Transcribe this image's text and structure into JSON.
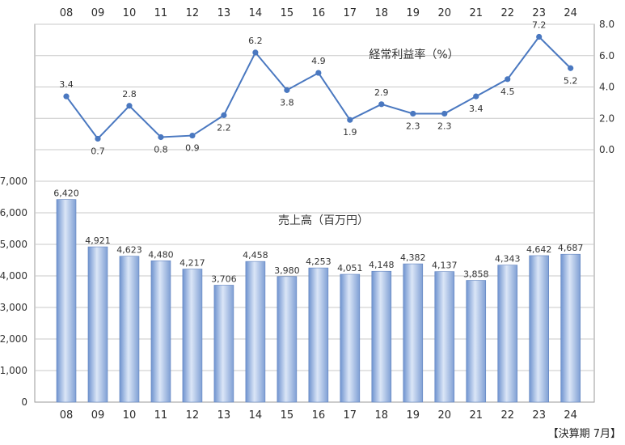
{
  "chart_data": [
    {
      "type": "line",
      "title": "経常利益率（%）",
      "categories": [
        "08",
        "09",
        "10",
        "11",
        "12",
        "13",
        "14",
        "15",
        "16",
        "17",
        "18",
        "19",
        "20",
        "21",
        "22",
        "23",
        "24"
      ],
      "values": [
        3.4,
        0.7,
        2.8,
        0.8,
        0.9,
        2.2,
        6.2,
        3.8,
        4.9,
        1.9,
        2.9,
        2.3,
        2.3,
        3.4,
        4.5,
        7.2,
        5.2
      ],
      "y_ticks": [
        "0.0",
        "2.0",
        "4.0",
        "6.0",
        "8.0"
      ],
      "ylim": [
        0,
        8
      ],
      "axis_side": "right",
      "color": "#4a78c0"
    },
    {
      "type": "bar",
      "title": "売上高（百万円）",
      "categories": [
        "08",
        "09",
        "10",
        "11",
        "12",
        "13",
        "14",
        "15",
        "16",
        "17",
        "18",
        "19",
        "20",
        "21",
        "22",
        "23",
        "24"
      ],
      "values": [
        6420,
        4921,
        4623,
        4480,
        4217,
        3706,
        4458,
        3980,
        4253,
        4051,
        4148,
        4382,
        4137,
        3858,
        4343,
        4642,
        4687
      ],
      "labels": [
        "6,420",
        "4,921",
        "4,623",
        "4,480",
        "4,217",
        "3,706",
        "4,458",
        "3,980",
        "4,253",
        "4,051",
        "4,148",
        "4,382",
        "4,137",
        "3,858",
        "4,343",
        "4,642",
        "4,687"
      ],
      "y_ticks": [
        "0",
        "1,000",
        "2,000",
        "3,000",
        "4,000",
        "5,000",
        "6,000",
        "7,000"
      ],
      "ylim": [
        0,
        7000
      ],
      "axis_side": "left",
      "color": "#9db6e0"
    }
  ],
  "footnote": "【決算期 7月】"
}
